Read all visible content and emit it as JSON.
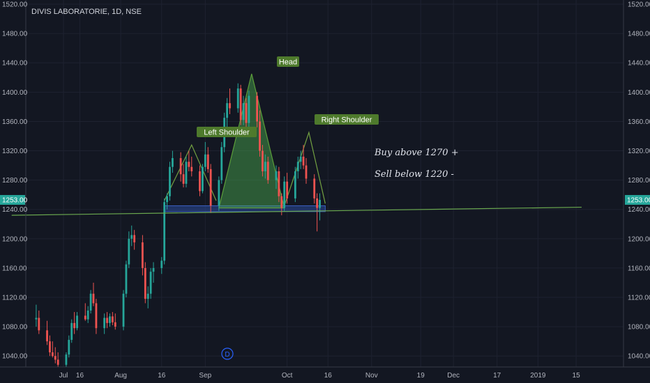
{
  "chart_data": {
    "type": "candlestick",
    "title": "DIVIS LABORATORIE, 1D, NSE",
    "ylim": [
      1025,
      1521
    ],
    "y_ticks": [
      1040,
      1080,
      1120,
      1160,
      1200,
      1240,
      1280,
      1320,
      1360,
      1400,
      1440,
      1480,
      1520
    ],
    "y_tick_labels": [
      "1040.00",
      "1080.00",
      "1120.00",
      "1160.00",
      "1200.00",
      "1240.00",
      "1280.00",
      "1320.00",
      "1360.00",
      "1400.00",
      "1440.00",
      "1480.00",
      "1520.00"
    ],
    "x_ticks": [
      {
        "label": "Jul",
        "day": 10
      },
      {
        "label": "16",
        "day": 16
      },
      {
        "label": "Aug",
        "day": 31
      },
      {
        "label": "16",
        "day": 46
      },
      {
        "label": "Sep",
        "day": 62
      },
      {
        "label": "Oct",
        "day": 92
      },
      {
        "label": "16",
        "day": 107
      },
      {
        "label": "Nov",
        "day": 123
      },
      {
        "label": "19",
        "day": 141
      },
      {
        "label": "Dec",
        "day": 153
      },
      {
        "label": "17",
        "day": 169
      },
      {
        "label": "2019",
        "day": 184
      },
      {
        "label": "15",
        "day": 198
      }
    ],
    "last_price": 1253,
    "last_price_label": "1253.00",
    "colors": {
      "up": "#26a69a",
      "down": "#ef5350"
    },
    "candles": [
      {
        "day": 0,
        "o": 1090,
        "h": 1110,
        "l": 1080,
        "c": 1092
      },
      {
        "day": 1,
        "o": 1092,
        "h": 1102,
        "l": 1070,
        "c": 1075
      },
      {
        "day": 4,
        "o": 1075,
        "h": 1088,
        "l": 1055,
        "c": 1060
      },
      {
        "day": 5,
        "o": 1060,
        "h": 1068,
        "l": 1040,
        "c": 1045
      },
      {
        "day": 6,
        "o": 1045,
        "h": 1060,
        "l": 1038,
        "c": 1040
      },
      {
        "day": 7,
        "o": 1040,
        "h": 1052,
        "l": 1030,
        "c": 1035
      },
      {
        "day": 8,
        "o": 1035,
        "h": 1045,
        "l": 1025,
        "c": 1028
      },
      {
        "day": 11,
        "o": 1028,
        "h": 1045,
        "l": 1025,
        "c": 1042
      },
      {
        "day": 12,
        "o": 1042,
        "h": 1068,
        "l": 1038,
        "c": 1062
      },
      {
        "day": 13,
        "o": 1062,
        "h": 1090,
        "l": 1058,
        "c": 1085
      },
      {
        "day": 14,
        "o": 1085,
        "h": 1100,
        "l": 1070,
        "c": 1078
      },
      {
        "day": 15,
        "o": 1078,
        "h": 1100,
        "l": 1075,
        "c": 1095
      },
      {
        "day": 18,
        "o": 1095,
        "h": 1112,
        "l": 1088,
        "c": 1090
      },
      {
        "day": 19,
        "o": 1090,
        "h": 1108,
        "l": 1085,
        "c": 1102
      },
      {
        "day": 20,
        "o": 1102,
        "h": 1130,
        "l": 1098,
        "c": 1125
      },
      {
        "day": 21,
        "o": 1125,
        "h": 1140,
        "l": 1108,
        "c": 1112
      },
      {
        "day": 22,
        "o": 1112,
        "h": 1118,
        "l": 1070,
        "c": 1078
      },
      {
        "day": 25,
        "o": 1078,
        "h": 1098,
        "l": 1070,
        "c": 1092
      },
      {
        "day": 26,
        "o": 1092,
        "h": 1100,
        "l": 1078,
        "c": 1085
      },
      {
        "day": 27,
        "o": 1085,
        "h": 1098,
        "l": 1080,
        "c": 1094
      },
      {
        "day": 28,
        "o": 1094,
        "h": 1100,
        "l": 1082,
        "c": 1086
      },
      {
        "day": 29,
        "o": 1086,
        "h": 1098,
        "l": 1076,
        "c": 1080
      },
      {
        "day": 32,
        "o": 1080,
        "h": 1130,
        "l": 1075,
        "c": 1125
      },
      {
        "day": 33,
        "o": 1125,
        "h": 1170,
        "l": 1120,
        "c": 1165
      },
      {
        "day": 34,
        "o": 1165,
        "h": 1210,
        "l": 1160,
        "c": 1200
      },
      {
        "day": 35,
        "o": 1200,
        "h": 1218,
        "l": 1190,
        "c": 1205
      },
      {
        "day": 36,
        "o": 1205,
        "h": 1212,
        "l": 1185,
        "c": 1195
      },
      {
        "day": 39,
        "o": 1195,
        "h": 1205,
        "l": 1150,
        "c": 1160
      },
      {
        "day": 40,
        "o": 1160,
        "h": 1168,
        "l": 1112,
        "c": 1118
      },
      {
        "day": 41,
        "o": 1118,
        "h": 1135,
        "l": 1105,
        "c": 1125
      },
      {
        "day": 42,
        "o": 1125,
        "h": 1160,
        "l": 1118,
        "c": 1155
      },
      {
        "day": 43,
        "o": 1155,
        "h": 1168,
        "l": 1140,
        "c": 1160
      },
      {
        "day": 46,
        "o": 1160,
        "h": 1175,
        "l": 1152,
        "c": 1170
      },
      {
        "day": 47,
        "o": 1170,
        "h": 1255,
        "l": 1165,
        "c": 1250
      },
      {
        "day": 48,
        "o": 1250,
        "h": 1262,
        "l": 1240,
        "c": 1258
      },
      {
        "day": 49,
        "o": 1258,
        "h": 1305,
        "l": 1252,
        "c": 1298
      },
      {
        "day": 50,
        "o": 1298,
        "h": 1320,
        "l": 1290,
        "c": 1310
      },
      {
        "day": 53,
        "o": 1310,
        "h": 1318,
        "l": 1278,
        "c": 1288
      },
      {
        "day": 54,
        "o": 1288,
        "h": 1302,
        "l": 1270,
        "c": 1275
      },
      {
        "day": 55,
        "o": 1275,
        "h": 1312,
        "l": 1270,
        "c": 1305
      },
      {
        "day": 56,
        "o": 1305,
        "h": 1320,
        "l": 1292,
        "c": 1298
      },
      {
        "day": 57,
        "o": 1298,
        "h": 1312,
        "l": 1285,
        "c": 1292
      },
      {
        "day": 60,
        "o": 1292,
        "h": 1300,
        "l": 1258,
        "c": 1265
      },
      {
        "day": 61,
        "o": 1265,
        "h": 1302,
        "l": 1262,
        "c": 1298
      },
      {
        "day": 62,
        "o": 1298,
        "h": 1332,
        "l": 1292,
        "c": 1315
      },
      {
        "day": 63,
        "o": 1315,
        "h": 1325,
        "l": 1290,
        "c": 1295
      },
      {
        "day": 64,
        "o": 1295,
        "h": 1302,
        "l": 1235,
        "c": 1245
      },
      {
        "day": 67,
        "o": 1245,
        "h": 1285,
        "l": 1238,
        "c": 1280
      },
      {
        "day": 68,
        "o": 1280,
        "h": 1332,
        "l": 1275,
        "c": 1325
      },
      {
        "day": 69,
        "o": 1325,
        "h": 1372,
        "l": 1318,
        "c": 1365
      },
      {
        "day": 70,
        "o": 1365,
        "h": 1392,
        "l": 1352,
        "c": 1385
      },
      {
        "day": 71,
        "o": 1385,
        "h": 1405,
        "l": 1370,
        "c": 1378
      },
      {
        "day": 74,
        "o": 1378,
        "h": 1412,
        "l": 1372,
        "c": 1405
      },
      {
        "day": 75,
        "o": 1405,
        "h": 1410,
        "l": 1355,
        "c": 1362
      },
      {
        "day": 76,
        "o": 1362,
        "h": 1395,
        "l": 1355,
        "c": 1385
      },
      {
        "day": 77,
        "o": 1385,
        "h": 1392,
        "l": 1350,
        "c": 1358
      },
      {
        "day": 78,
        "o": 1358,
        "h": 1402,
        "l": 1352,
        "c": 1395
      },
      {
        "day": 81,
        "o": 1395,
        "h": 1400,
        "l": 1352,
        "c": 1360
      },
      {
        "day": 82,
        "o": 1360,
        "h": 1375,
        "l": 1312,
        "c": 1320
      },
      {
        "day": 83,
        "o": 1320,
        "h": 1328,
        "l": 1285,
        "c": 1292
      },
      {
        "day": 84,
        "o": 1292,
        "h": 1315,
        "l": 1282,
        "c": 1305
      },
      {
        "day": 85,
        "o": 1305,
        "h": 1312,
        "l": 1275,
        "c": 1280
      },
      {
        "day": 88,
        "o": 1280,
        "h": 1300,
        "l": 1268,
        "c": 1292
      },
      {
        "day": 89,
        "o": 1292,
        "h": 1298,
        "l": 1250,
        "c": 1258
      },
      {
        "day": 90,
        "o": 1258,
        "h": 1262,
        "l": 1232,
        "c": 1242
      },
      {
        "day": 91,
        "o": 1242,
        "h": 1285,
        "l": 1238,
        "c": 1278
      },
      {
        "day": 92,
        "o": 1278,
        "h": 1290,
        "l": 1248,
        "c": 1255
      },
      {
        "day": 95,
        "o": 1255,
        "h": 1298,
        "l": 1250,
        "c": 1292
      },
      {
        "day": 96,
        "o": 1292,
        "h": 1312,
        "l": 1282,
        "c": 1305
      },
      {
        "day": 97,
        "o": 1305,
        "h": 1320,
        "l": 1295,
        "c": 1312
      },
      {
        "day": 98,
        "o": 1312,
        "h": 1328,
        "l": 1295,
        "c": 1300
      },
      {
        "day": 99,
        "o": 1300,
        "h": 1310,
        "l": 1275,
        "c": 1282
      },
      {
        "day": 102,
        "o": 1282,
        "h": 1288,
        "l": 1248,
        "c": 1255
      },
      {
        "day": 103,
        "o": 1255,
        "h": 1262,
        "l": 1210,
        "c": 1242
      },
      {
        "day": 104,
        "o": 1242,
        "h": 1262,
        "l": 1225,
        "c": 1253
      }
    ],
    "annotations": {
      "head_label": "Head",
      "left_shoulder_label": "Left Shoulder",
      "right_shoulder_label": "Right Shoulder",
      "buy_text": "Buy above 1270 +",
      "sell_text": "Sell below 1220 -",
      "dividend_marker": "D",
      "neckline": [
        {
          "day": -9,
          "price": 1232
        },
        {
          "day": 200,
          "price": 1243
        }
      ],
      "neck_zone": {
        "day_start": 47,
        "day_end": 106,
        "price_low": 1237,
        "price_high": 1245
      },
      "head_triangle": [
        {
          "day": 67,
          "price": 1242
        },
        {
          "day": 79,
          "price": 1425
        },
        {
          "day": 91,
          "price": 1242
        }
      ],
      "left_shoulder_path": [
        {
          "day": 47,
          "price": 1252
        },
        {
          "day": 57,
          "price": 1328
        },
        {
          "day": 66,
          "price": 1252
        }
      ],
      "right_shoulder_path": [
        {
          "day": 91,
          "price": 1245
        },
        {
          "day": 100,
          "price": 1345
        },
        {
          "day": 106,
          "price": 1248
        }
      ]
    }
  }
}
